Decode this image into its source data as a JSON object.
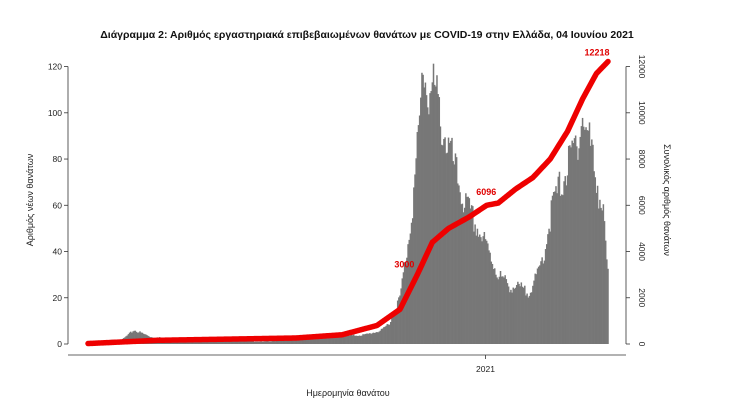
{
  "chart_data": {
    "type": "bar",
    "title": "Διάγραμμα 2: Αριθμός εργαστηριακά επιβεβαιωμένων θανάτων με COVID-19 στην Ελλάδα, 04 Ιουνίου 2021",
    "xlabel": "Ημερομηνία θανάτου",
    "ylabel": "Αριθμός νέων θανάτων",
    "y2label": "Συνολικός αριθμός θανάτων",
    "ylim": [
      0,
      125
    ],
    "y2lim": [
      0,
      12500
    ],
    "yticks": [
      0,
      20,
      40,
      60,
      80,
      100,
      120
    ],
    "y2ticks": [
      0,
      2000,
      4000,
      6000,
      8000,
      10000,
      12000
    ],
    "xtick_labels": [
      "2021"
    ],
    "xtick_index": 344,
    "grid": false,
    "colors": {
      "bars": "#777777",
      "cumulative_line": "#ee0000"
    },
    "daily_series": {
      "name": "",
      "format": "piecewise-linear keypoints [day_index, daily_deaths]; one bar per day from index 0 to 450",
      "days": 451,
      "keypoints": [
        [
          0,
          1
        ],
        [
          30,
          2
        ],
        [
          40,
          6
        ],
        [
          55,
          3
        ],
        [
          80,
          2
        ],
        [
          150,
          1
        ],
        [
          180,
          2
        ],
        [
          210,
          3
        ],
        [
          240,
          4
        ],
        [
          255,
          6
        ],
        [
          262,
          10
        ],
        [
          270,
          20
        ],
        [
          276,
          40
        ],
        [
          282,
          65
        ],
        [
          287,
          95
        ],
        [
          290,
          121
        ],
        [
          294,
          108
        ],
        [
          300,
          110
        ],
        [
          306,
          95
        ],
        [
          315,
          80
        ],
        [
          325,
          62
        ],
        [
          335,
          52
        ],
        [
          345,
          42
        ],
        [
          355,
          30
        ],
        [
          365,
          25
        ],
        [
          375,
          24
        ],
        [
          380,
          22
        ],
        [
          388,
          28
        ],
        [
          395,
          40
        ],
        [
          402,
          60
        ],
        [
          410,
          70
        ],
        [
          418,
          80
        ],
        [
          424,
          90
        ],
        [
          428,
          98
        ],
        [
          434,
          88
        ],
        [
          440,
          72
        ],
        [
          446,
          55
        ],
        [
          450,
          30
        ]
      ]
    },
    "cumulative_series": {
      "name": "",
      "format": "keypoints [day_index, total_deaths]",
      "keypoints": [
        [
          0,
          20
        ],
        [
          60,
          160
        ],
        [
          120,
          210
        ],
        [
          180,
          260
        ],
        [
          220,
          400
        ],
        [
          250,
          800
        ],
        [
          270,
          1500
        ],
        [
          285,
          3000
        ],
        [
          298,
          4400
        ],
        [
          312,
          5000
        ],
        [
          330,
          5500
        ],
        [
          345,
          6000
        ],
        [
          355,
          6096
        ],
        [
          370,
          6700
        ],
        [
          385,
          7200
        ],
        [
          400,
          8000
        ],
        [
          415,
          9200
        ],
        [
          428,
          10600
        ],
        [
          440,
          11700
        ],
        [
          450,
          12218
        ]
      ]
    },
    "annotations": [
      {
        "label": "3000",
        "x": 285,
        "y": 3000
      },
      {
        "label": "6096",
        "x": 355,
        "y": 6096
      },
      {
        "label": "12218",
        "x": 450,
        "y": 12218
      }
    ]
  }
}
